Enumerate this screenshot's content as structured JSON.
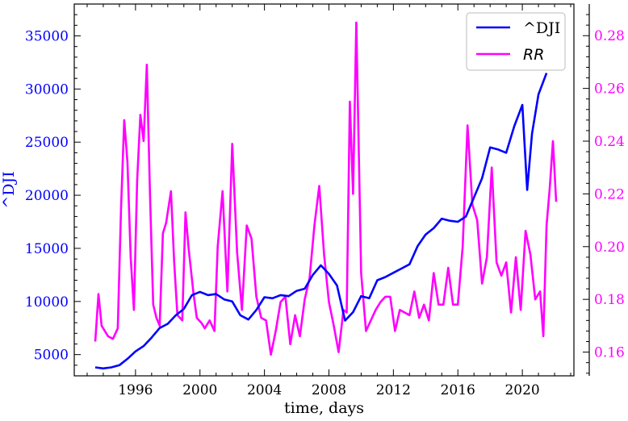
{
  "chart_data": {
    "type": "line",
    "xlabel": "time, days",
    "ylabel_left": "^DJI",
    "ylabel_right": "",
    "x_ticks": [
      1996,
      2000,
      2004,
      2008,
      2012,
      2016,
      2020
    ],
    "xlim": [
      1992.2,
      2023.2
    ],
    "y_left": {
      "lim": [
        3000,
        38000
      ],
      "ticks": [
        5000,
        10000,
        15000,
        20000,
        25000,
        30000,
        35000
      ],
      "color": "#0000ff"
    },
    "y_right": {
      "lim": [
        0.151,
        0.292
      ],
      "ticks": [
        0.16,
        0.18,
        0.2,
        0.22,
        0.24,
        0.26,
        0.28
      ],
      "color": "#ff00ff"
    },
    "legend_position": "top-right",
    "series": [
      {
        "name": "^DJI",
        "axis": "left",
        "color": "#0000ff",
        "x": [
          1993.5,
          1994.0,
          1994.5,
          1995.0,
          1995.5,
          1996.0,
          1996.5,
          1997.0,
          1997.5,
          1998.0,
          1998.5,
          1999.0,
          1999.5,
          2000.0,
          2000.5,
          2001.0,
          2001.5,
          2002.0,
          2002.5,
          2003.0,
          2003.5,
          2004.0,
          2004.5,
          2005.0,
          2005.5,
          2006.0,
          2006.5,
          2007.0,
          2007.5,
          2008.0,
          2008.5,
          2009.0,
          2009.5,
          2010.0,
          2010.5,
          2011.0,
          2011.5,
          2012.0,
          2012.5,
          2013.0,
          2013.5,
          2014.0,
          2014.5,
          2015.0,
          2015.5,
          2016.0,
          2016.5,
          2017.0,
          2017.5,
          2018.0,
          2018.5,
          2019.0,
          2019.5,
          2020.0,
          2020.3,
          2020.6,
          2021.0,
          2021.5
        ],
        "y": [
          3800,
          3700,
          3800,
          4000,
          4600,
          5300,
          5800,
          6600,
          7500,
          7900,
          8700,
          9300,
          10600,
          10900,
          10600,
          10700,
          10200,
          10000,
          8700,
          8300,
          9200,
          10400,
          10300,
          10600,
          10500,
          11000,
          11200,
          12500,
          13400,
          12600,
          11500,
          8200,
          9000,
          10500,
          10300,
          12000,
          12300,
          12700,
          13100,
          13500,
          15200,
          16300,
          16900,
          17800,
          17600,
          17500,
          18000,
          19800,
          21600,
          24500,
          24300,
          24000,
          26500,
          28500,
          20500,
          25800,
          29500,
          31500
        ]
      },
      {
        "name": "RR",
        "axis": "right",
        "color": "#ff00ff",
        "x": [
          1993.5,
          1993.7,
          1993.9,
          1994.1,
          1994.3,
          1994.6,
          1994.9,
          1995.1,
          1995.3,
          1995.5,
          1995.7,
          1995.9,
          1996.1,
          1996.3,
          1996.5,
          1996.7,
          1996.9,
          1997.1,
          1997.3,
          1997.5,
          1997.7,
          1997.9,
          1998.2,
          1998.4,
          1998.6,
          1998.9,
          1999.1,
          1999.3,
          1999.6,
          1999.8,
          2000.1,
          2000.3,
          2000.6,
          2000.9,
          2001.1,
          2001.4,
          2001.7,
          2002.0,
          2002.3,
          2002.6,
          2002.9,
          2003.2,
          2003.5,
          2003.8,
          2004.1,
          2004.4,
          2004.7,
          2005.0,
          2005.3,
          2005.6,
          2005.9,
          2006.2,
          2006.5,
          2006.8,
          2007.1,
          2007.4,
          2007.7,
          2008.0,
          2008.3,
          2008.6,
          2008.9,
          2009.1,
          2009.3,
          2009.5,
          2009.7,
          2010.0,
          2010.3,
          2010.6,
          2010.9,
          2011.2,
          2011.5,
          2011.8,
          2012.1,
          2012.4,
          2012.7,
          2013.0,
          2013.3,
          2013.6,
          2013.9,
          2014.2,
          2014.5,
          2014.8,
          2015.1,
          2015.4,
          2015.7,
          2016.0,
          2016.3,
          2016.6,
          2016.9,
          2017.2,
          2017.5,
          2017.8,
          2018.1,
          2018.4,
          2018.7,
          2019.0,
          2019.3,
          2019.6,
          2019.9,
          2020.2,
          2020.5,
          2020.8,
          2021.1,
          2021.3,
          2021.5,
          2021.7,
          2021.9,
          2022.1
        ],
        "y": [
          0.164,
          0.182,
          0.17,
          0.168,
          0.166,
          0.165,
          0.169,
          0.214,
          0.248,
          0.232,
          0.196,
          0.176,
          0.225,
          0.25,
          0.24,
          0.269,
          0.22,
          0.178,
          0.173,
          0.17,
          0.205,
          0.209,
          0.221,
          0.194,
          0.174,
          0.172,
          0.213,
          0.199,
          0.182,
          0.173,
          0.171,
          0.169,
          0.172,
          0.168,
          0.2,
          0.221,
          0.183,
          0.239,
          0.198,
          0.176,
          0.208,
          0.203,
          0.181,
          0.173,
          0.172,
          0.159,
          0.168,
          0.179,
          0.181,
          0.163,
          0.174,
          0.166,
          0.18,
          0.188,
          0.208,
          0.223,
          0.197,
          0.179,
          0.17,
          0.16,
          0.176,
          0.175,
          0.255,
          0.22,
          0.285,
          0.19,
          0.168,
          0.172,
          0.176,
          0.179,
          0.181,
          0.181,
          0.168,
          0.176,
          0.175,
          0.174,
          0.183,
          0.173,
          0.178,
          0.172,
          0.19,
          0.178,
          0.178,
          0.192,
          0.178,
          0.178,
          0.2,
          0.246,
          0.216,
          0.21,
          0.186,
          0.196,
          0.23,
          0.194,
          0.189,
          0.194,
          0.175,
          0.196,
          0.176,
          0.206,
          0.197,
          0.18,
          0.183,
          0.166,
          0.208,
          0.222,
          0.24,
          0.217
        ]
      }
    ],
    "legend": [
      {
        "label": "^DJI",
        "color": "#0000ff"
      },
      {
        "label": "RR",
        "color": "#ff00ff"
      }
    ]
  }
}
